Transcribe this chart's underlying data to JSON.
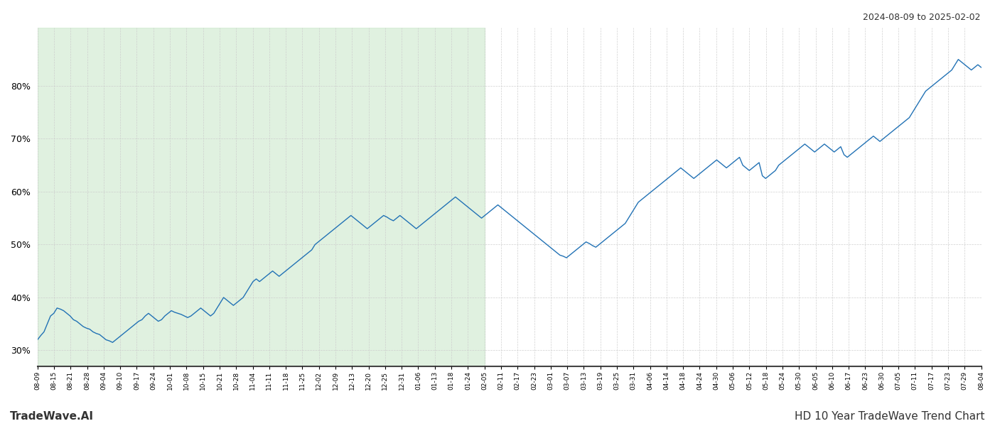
{
  "title_top_right": "2024-08-09 to 2025-02-02",
  "title_bottom_left": "TradeWave.AI",
  "title_bottom_right": "HD 10 Year TradeWave Trend Chart",
  "line_color": "#2272b5",
  "background_color": "#ffffff",
  "shaded_region_color": "#c8e6c8",
  "shaded_alpha": 0.55,
  "grid_color": "#cccccc",
  "ylim": [
    27,
    91
  ],
  "yticks": [
    30,
    40,
    50,
    60,
    70,
    80
  ],
  "x_labels": [
    "08-09",
    "08-15",
    "08-21",
    "08-28",
    "09-04",
    "09-10",
    "09-17",
    "09-24",
    "10-01",
    "10-08",
    "10-15",
    "10-21",
    "10-28",
    "11-04",
    "11-11",
    "11-18",
    "11-25",
    "12-02",
    "12-09",
    "12-13",
    "12-20",
    "12-25",
    "12-31",
    "01-06",
    "01-13",
    "01-18",
    "01-24",
    "02-05",
    "02-11",
    "02-17",
    "02-23",
    "03-01",
    "03-07",
    "03-13",
    "03-19",
    "03-25",
    "03-31",
    "04-06",
    "04-14",
    "04-18",
    "04-24",
    "04-30",
    "05-06",
    "05-12",
    "05-18",
    "05-24",
    "05-30",
    "06-05",
    "06-10",
    "06-17",
    "06-23",
    "06-30",
    "07-05",
    "07-11",
    "07-17",
    "07-23",
    "07-29",
    "08-04"
  ],
  "shaded_x_start_label": "08-09",
  "shaded_x_end_label": "02-05",
  "values": [
    32.0,
    32.8,
    33.5,
    35.0,
    36.5,
    37.0,
    38.0,
    37.8,
    37.5,
    37.0,
    36.5,
    35.8,
    35.5,
    35.0,
    34.5,
    34.2,
    34.0,
    33.5,
    33.2,
    33.0,
    32.5,
    32.0,
    31.8,
    31.5,
    32.0,
    32.5,
    33.0,
    33.5,
    34.0,
    34.5,
    35.0,
    35.5,
    35.8,
    36.5,
    37.0,
    36.5,
    36.0,
    35.5,
    35.8,
    36.5,
    37.0,
    37.5,
    37.2,
    37.0,
    36.8,
    36.5,
    36.2,
    36.5,
    37.0,
    37.5,
    38.0,
    37.5,
    37.0,
    36.5,
    37.0,
    38.0,
    39.0,
    40.0,
    39.5,
    39.0,
    38.5,
    39.0,
    39.5,
    40.0,
    41.0,
    42.0,
    43.0,
    43.5,
    43.0,
    43.5,
    44.0,
    44.5,
    45.0,
    44.5,
    44.0,
    44.5,
    45.0,
    45.5,
    46.0,
    46.5,
    47.0,
    47.5,
    48.0,
    48.5,
    49.0,
    50.0,
    50.5,
    51.0,
    51.5,
    52.0,
    52.5,
    53.0,
    53.5,
    54.0,
    54.5,
    55.0,
    55.5,
    55.0,
    54.5,
    54.0,
    53.5,
    53.0,
    53.5,
    54.0,
    54.5,
    55.0,
    55.5,
    55.2,
    54.8,
    54.5,
    55.0,
    55.5,
    55.0,
    54.5,
    54.0,
    53.5,
    53.0,
    53.5,
    54.0,
    54.5,
    55.0,
    55.5,
    56.0,
    56.5,
    57.0,
    57.5,
    58.0,
    58.5,
    59.0,
    58.5,
    58.0,
    57.5,
    57.0,
    56.5,
    56.0,
    55.5,
    55.0,
    55.5,
    56.0,
    56.5,
    57.0,
    57.5,
    57.0,
    56.5,
    56.0,
    55.5,
    55.0,
    54.5,
    54.0,
    53.5,
    53.0,
    52.5,
    52.0,
    51.5,
    51.0,
    50.5,
    50.0,
    49.5,
    49.0,
    48.5,
    48.0,
    47.8,
    47.5,
    48.0,
    48.5,
    49.0,
    49.5,
    50.0,
    50.5,
    50.2,
    49.8,
    49.5,
    50.0,
    50.5,
    51.0,
    51.5,
    52.0,
    52.5,
    53.0,
    53.5,
    54.0,
    55.0,
    56.0,
    57.0,
    58.0,
    58.5,
    59.0,
    59.5,
    60.0,
    60.5,
    61.0,
    61.5,
    62.0,
    62.5,
    63.0,
    63.5,
    64.0,
    64.5,
    64.0,
    63.5,
    63.0,
    62.5,
    63.0,
    63.5,
    64.0,
    64.5,
    65.0,
    65.5,
    66.0,
    65.5,
    65.0,
    64.5,
    65.0,
    65.5,
    66.0,
    66.5,
    65.0,
    64.5,
    64.0,
    64.5,
    65.0,
    65.5,
    63.0,
    62.5,
    63.0,
    63.5,
    64.0,
    65.0,
    65.5,
    66.0,
    66.5,
    67.0,
    67.5,
    68.0,
    68.5,
    69.0,
    68.5,
    68.0,
    67.5,
    68.0,
    68.5,
    69.0,
    68.5,
    68.0,
    67.5,
    68.0,
    68.5,
    67.0,
    66.5,
    67.0,
    67.5,
    68.0,
    68.5,
    69.0,
    69.5,
    70.0,
    70.5,
    70.0,
    69.5,
    70.0,
    70.5,
    71.0,
    71.5,
    72.0,
    72.5,
    73.0,
    73.5,
    74.0,
    75.0,
    76.0,
    77.0,
    78.0,
    79.0,
    79.5,
    80.0,
    80.5,
    81.0,
    81.5,
    82.0,
    82.5,
    83.0,
    84.0,
    85.0,
    84.5,
    84.0,
    83.5,
    83.0,
    83.5,
    84.0,
    83.5
  ]
}
